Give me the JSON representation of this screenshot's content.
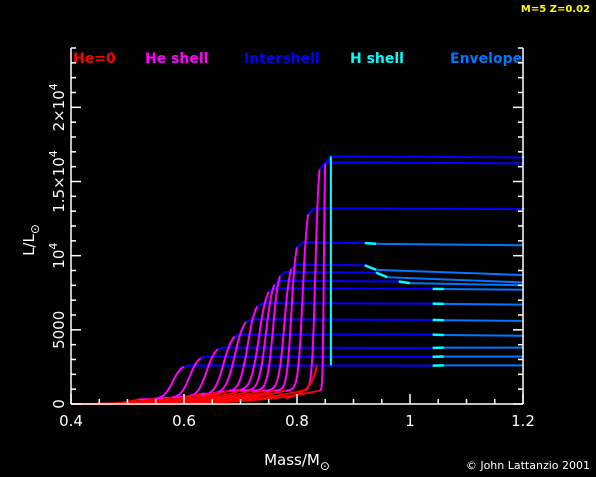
{
  "header": {
    "params": "M=5 Z=0.02",
    "params_color": "#ffff00"
  },
  "footer": {
    "credit": "© John Lattanzio 2001"
  },
  "colors": {
    "background": "#000000",
    "axis": "#ffffff",
    "he0": "#ff0000",
    "he_shell": "#ff00ff",
    "intershell": "#0000ff",
    "h_shell": "#00ffff",
    "envelope": "#0077ff"
  },
  "chart_data": {
    "type": "line",
    "title": "",
    "xlabel": "Mass/M",
    "xlabel_sub": "⊙",
    "ylabel": "L/L",
    "ylabel_sub": "⊙",
    "xlim": [
      0.4,
      1.2
    ],
    "ylim": [
      0,
      24000
    ],
    "x_ticks": [
      {
        "value": 0.4,
        "label": "0.4"
      },
      {
        "value": 0.6,
        "label": "0.6"
      },
      {
        "value": 0.8,
        "label": "0.8"
      },
      {
        "value": 1.0,
        "label": "1"
      },
      {
        "value": 1.2,
        "label": "1.2"
      }
    ],
    "y_ticks": [
      {
        "value": 0,
        "label": "0",
        "exp": ""
      },
      {
        "value": 5000,
        "label": "5000",
        "exp": ""
      },
      {
        "value": 10000,
        "label": "10",
        "exp": "4"
      },
      {
        "value": 15000,
        "label": "1.5×10",
        "exp": "4"
      },
      {
        "value": 20000,
        "label": "2×10",
        "exp": "4"
      }
    ],
    "legend": [
      {
        "label": "He=0",
        "color": "#ff0000"
      },
      {
        "label": "He shell",
        "color": "#ff00ff"
      },
      {
        "label": "Intershell",
        "color": "#0000ff"
      },
      {
        "label": "H shell",
        "color": "#00ffff"
      },
      {
        "label": "Envelope",
        "color": "#0077ff"
      }
    ],
    "legend_position": "top",
    "grid": false,
    "series": [
      {
        "L": 2600,
        "rise": 0.58,
        "he0": 0.52,
        "x1": 0.61,
        "x2": 1.04,
        "x3": 1.06,
        "end": 2600
      },
      {
        "L": 3200,
        "rise": 0.62,
        "he0": 0.55,
        "x1": 0.64,
        "x2": 1.04,
        "x3": 1.06,
        "end": 3200
      },
      {
        "L": 3800,
        "rise": 0.65,
        "he0": 0.58,
        "x1": 0.67,
        "x2": 1.04,
        "x3": 1.06,
        "end": 3800
      },
      {
        "L": 4700,
        "rise": 0.68,
        "he0": 0.61,
        "x1": 0.7,
        "x2": 1.04,
        "x3": 1.06,
        "end": 4600
      },
      {
        "L": 5700,
        "rise": 0.7,
        "he0": 0.63,
        "x1": 0.72,
        "x2": 1.04,
        "x3": 1.06,
        "end": 5600
      },
      {
        "L": 6800,
        "rise": 0.72,
        "he0": 0.66,
        "x1": 0.74,
        "x2": 1.04,
        "x3": 1.06,
        "end": 6700
      },
      {
        "L": 7800,
        "rise": 0.74,
        "he0": 0.68,
        "x1": 0.76,
        "x2": 1.04,
        "x3": 1.06,
        "end": 7700
      },
      {
        "L": 8300,
        "rise": 0.75,
        "he0": 0.7,
        "x1": 0.77,
        "x2": 0.98,
        "x3": 1.0,
        "end": 8000
      },
      {
        "L": 8900,
        "rise": 0.76,
        "he0": 0.72,
        "x1": 0.78,
        "x2": 0.94,
        "x3": 0.96,
        "end": 8200
      },
      {
        "L": 9400,
        "rise": 0.77,
        "he0": 0.74,
        "x1": 0.8,
        "x2": 0.92,
        "x3": 0.94,
        "end": 8700
      },
      {
        "L": 10900,
        "rise": 0.78,
        "he0": 0.76,
        "x1": 0.81,
        "x2": 0.92,
        "x3": 0.94,
        "end": 10700
      },
      {
        "L": 13200,
        "rise": 0.8,
        "he0": 0.78,
        "x1": 0.83,
        "x2": 1.2,
        "x3": 1.2,
        "end": 13200
      },
      {
        "L": 16300,
        "rise": 0.82,
        "he0": 0.81,
        "x1": 0.85,
        "x2": 1.2,
        "x3": 1.2,
        "end": 16100
      },
      {
        "L": 16700,
        "rise": 0.84,
        "he0": 0.84,
        "x1": 0.86,
        "x2": 1.2,
        "x3": 1.2,
        "end": 16700
      }
    ],
    "h_shell_marker": {
      "x": 0.86,
      "ymin": 2600,
      "ymax": 16700
    }
  }
}
